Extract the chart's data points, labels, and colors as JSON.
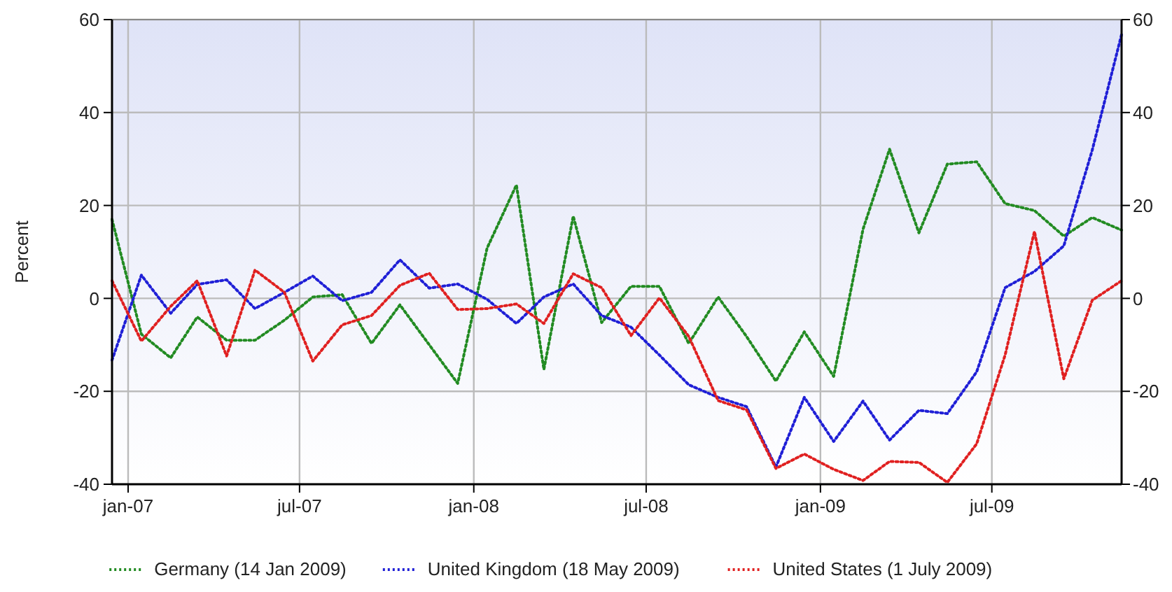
{
  "chart_data": {
    "type": "line",
    "ylabel": "Percent",
    "x": [
      "2006-12-15",
      "2007-01-15",
      "2007-02-15",
      "2007-03-15",
      "2007-04-15",
      "2007-05-15",
      "2007-06-15",
      "2007-07-15",
      "2007-08-15",
      "2007-09-15",
      "2007-10-15",
      "2007-11-15",
      "2007-12-15",
      "2008-01-15",
      "2008-02-15",
      "2008-03-15",
      "2008-04-15",
      "2008-05-15",
      "2008-06-15",
      "2008-07-15",
      "2008-08-15",
      "2008-09-15",
      "2008-10-15",
      "2008-11-15",
      "2008-12-15",
      "2009-01-15",
      "2009-02-15",
      "2009-03-15",
      "2009-04-15",
      "2009-05-15",
      "2009-06-15",
      "2009-07-15",
      "2009-08-15",
      "2009-09-15",
      "2009-10-15",
      "2009-11-15"
    ],
    "series": [
      {
        "name": "Germany (14 Jan 2009)",
        "color": "#228b22",
        "values": [
          17,
          -7.7,
          -12.8,
          -4,
          -9,
          -9,
          -4.7,
          0.3,
          0.8,
          -9.7,
          -1.4,
          -10,
          -18.3,
          10.8,
          24.4,
          -15.3,
          17.7,
          -5.2,
          2.6,
          2.6,
          -9.7,
          0.3,
          -8.2,
          -17.8,
          -7.2,
          -16.8,
          14.9,
          32.1,
          14.1,
          28.9,
          29.4,
          20.4,
          18.9,
          13.4,
          17.4,
          14.7
        ]
      },
      {
        "name": "United Kingdom (18 May 2009)",
        "color": "#1f1fd6",
        "values": [
          -13.3,
          5,
          -3.2,
          3,
          4,
          -2.2,
          1.3,
          4.8,
          -0.5,
          1.3,
          8.3,
          2.2,
          3.1,
          -0.2,
          -5.4,
          0.3,
          3.1,
          -3.7,
          -6.2,
          -12.2,
          -18.6,
          -21.3,
          -23.3,
          -36.3,
          -21.3,
          -30.8,
          -22.1,
          -30.5,
          -24.1,
          -24.8,
          -15.8,
          2.3,
          5.8,
          11.3,
          31.9,
          56.8
        ]
      },
      {
        "name": "United States (1 July 2009)",
        "color": "#e02020",
        "values": [
          3.8,
          -9.2,
          -1.7,
          3.8,
          -12.4,
          6.1,
          1.3,
          -13.5,
          -5.7,
          -3.7,
          2.8,
          5.4,
          -2.4,
          -2.2,
          -1.2,
          -5.4,
          5.3,
          2.3,
          -8,
          0.1,
          -8.2,
          -22,
          -24,
          -36.6,
          -33.5,
          -36.8,
          -39.2,
          -35.1,
          -35.3,
          -39.6,
          -31.3,
          -12.2,
          14.4,
          -17.3,
          -0.4,
          3.8
        ]
      }
    ],
    "xlim": [
      "2006-12-15",
      "2009-11-15"
    ],
    "xticks": [
      {
        "value": "2007-01-01",
        "label": "jan-07"
      },
      {
        "value": "2007-07-01",
        "label": "jul-07"
      },
      {
        "value": "2008-01-01",
        "label": "jan-08"
      },
      {
        "value": "2008-07-01",
        "label": "jul-08"
      },
      {
        "value": "2009-01-01",
        "label": "jan-09"
      },
      {
        "value": "2009-07-01",
        "label": "jul-09"
      }
    ],
    "ylim": [
      -40,
      60
    ],
    "yticks": [
      -40,
      -20,
      0,
      20,
      40,
      60
    ],
    "y2lim": [
      -40,
      60
    ],
    "y2ticks": [
      -40,
      -20,
      0,
      20,
      40,
      60
    ],
    "grid": true,
    "legend": "bottom",
    "marker": "none",
    "line_style": "dotted"
  }
}
